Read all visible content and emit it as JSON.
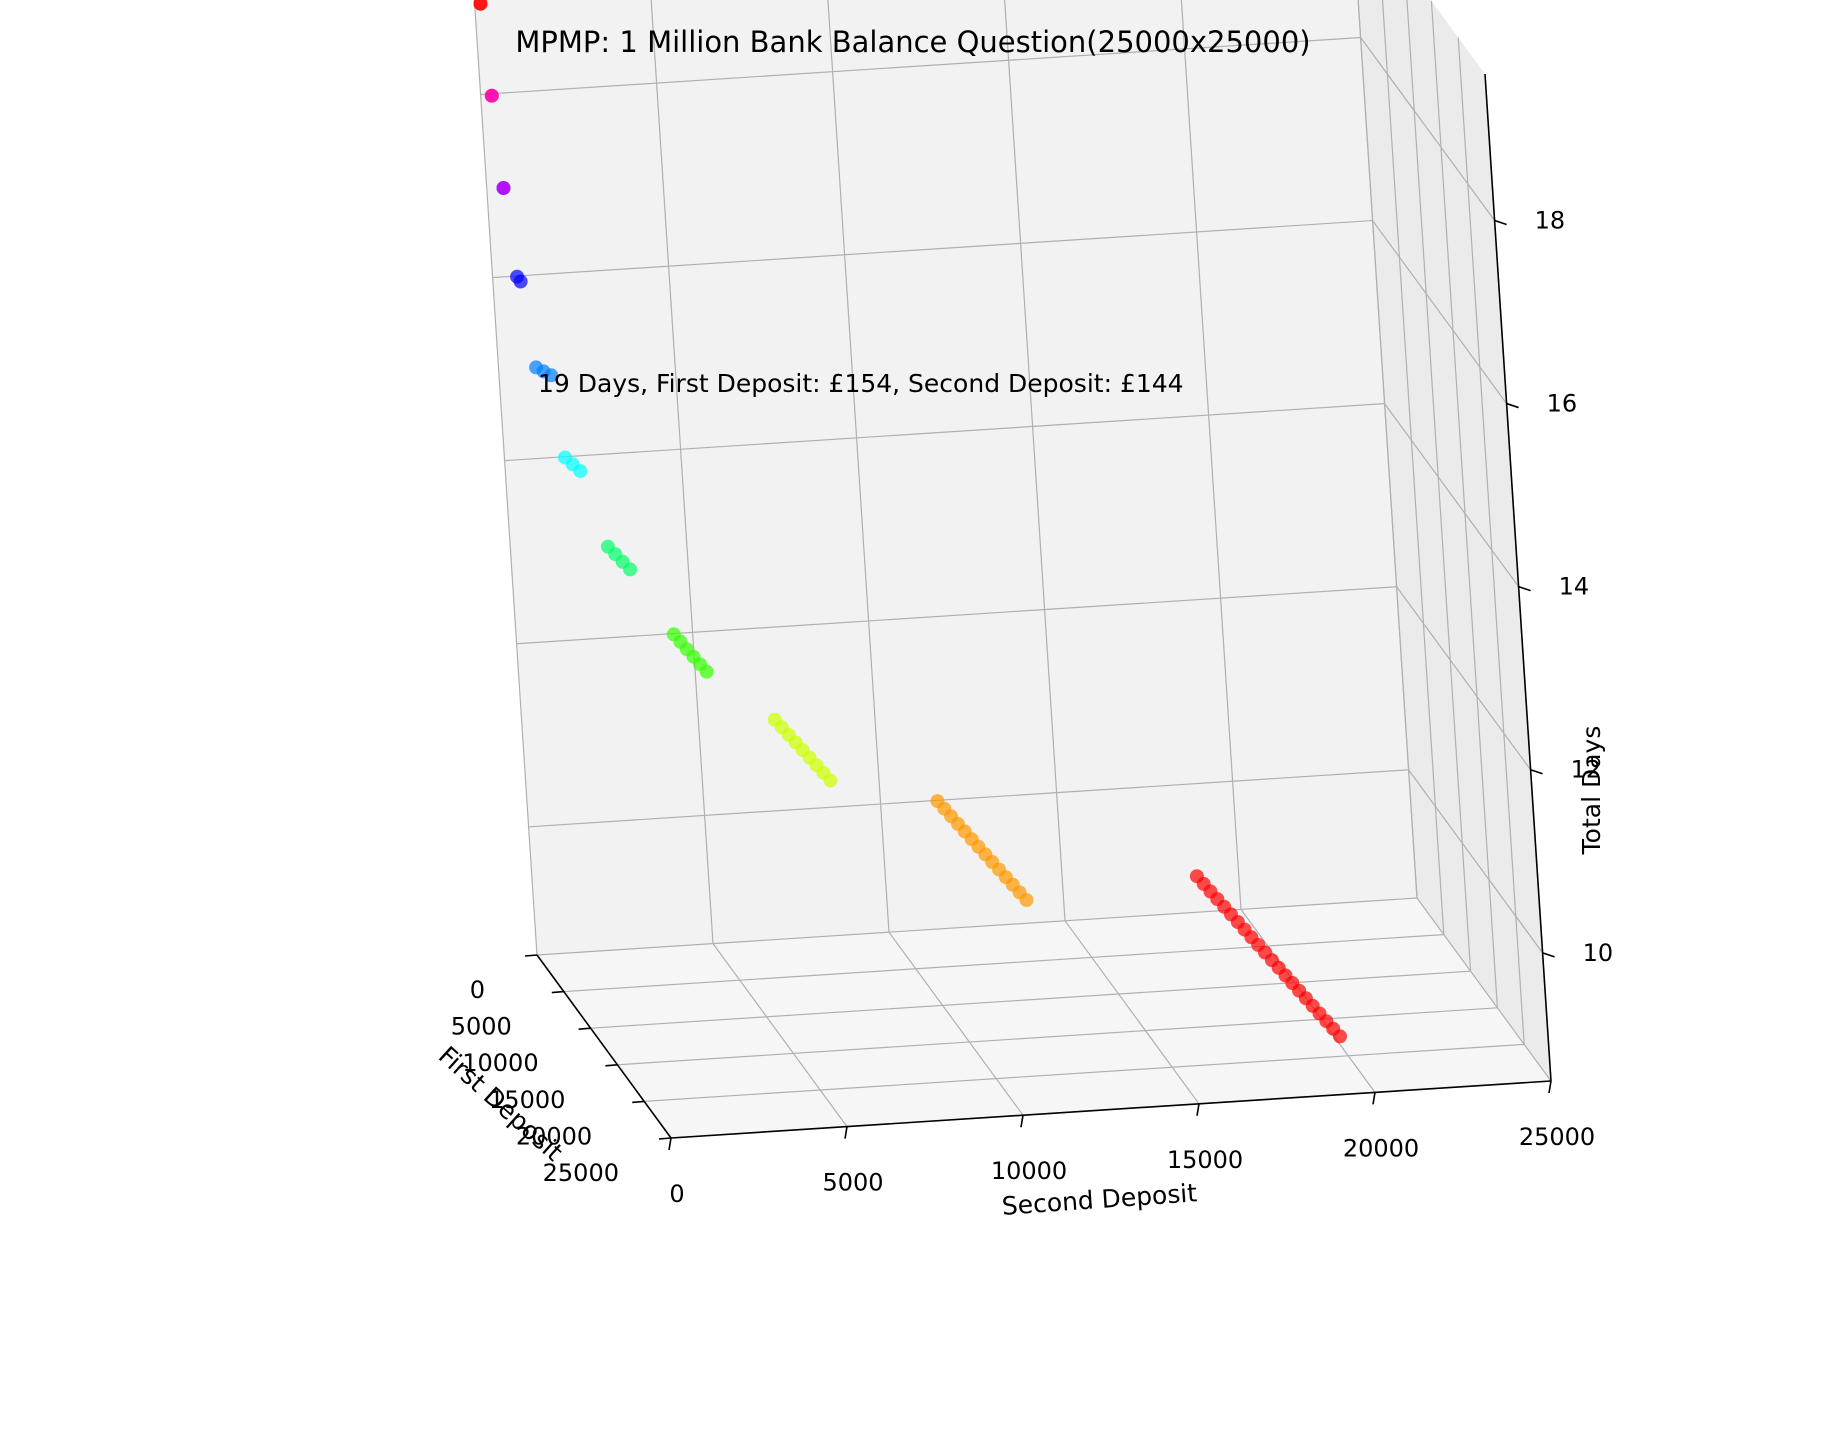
{
  "chart_data": {
    "type": "scatter",
    "title": "MPMP: 1 Million Bank Balance Question(25000x25000)",
    "xlabel": "First Deposit",
    "ylabel": "Second Deposit",
    "zlabel": "Total Days",
    "xlim": [
      0,
      25000
    ],
    "ylim": [
      0,
      25000
    ],
    "zlim": [
      8.6,
      19.6
    ],
    "x_ticks": [
      0,
      5000,
      10000,
      15000,
      20000,
      25000
    ],
    "y_ticks": [
      0,
      5000,
      10000,
      15000,
      20000,
      25000
    ],
    "z_ticks": [
      10,
      12,
      14,
      16,
      18
    ],
    "grid": true,
    "annotation": {
      "text": "19 Days, First Deposit: £154, Second Deposit: £144",
      "color": "#ff0000"
    },
    "series": [
      {
        "days": 19,
        "color": "#ff0000",
        "first_deposit": [
          154,
          154
        ],
        "second_deposit": [
          144,
          144
        ]
      },
      {
        "days": 18,
        "color": "#ff00aa",
        "first_deposit": [
          250,
          250
        ],
        "second_deposit": [
          280,
          280
        ]
      },
      {
        "days": 17,
        "color": "#aa00ff",
        "first_deposit": [
          400,
          400
        ],
        "second_deposit": [
          420,
          420
        ]
      },
      {
        "days": 16,
        "color": "#0000ff",
        "first_deposit": [
          100,
          750
        ],
        "second_deposit": [
          680,
          680
        ]
      },
      {
        "days": 15,
        "color": "#0080ff",
        "first_deposit": [
          100,
          1250
        ],
        "second_deposit": [
          1050,
          1300
        ]
      },
      {
        "days": 14,
        "color": "#00ffff",
        "first_deposit": [
          100,
          2000
        ],
        "second_deposit": [
          1700,
          1850
        ]
      },
      {
        "days": 13,
        "color": "#00ff66",
        "first_deposit": [
          100,
          3250
        ],
        "second_deposit": [
          2750,
          2900
        ]
      },
      {
        "days": 12,
        "color": "#33ff00",
        "first_deposit": [
          100,
          5250
        ],
        "second_deposit": [
          4450,
          4600
        ]
      },
      {
        "days": 11,
        "color": "#ccff00",
        "first_deposit": [
          100,
          8500
        ],
        "second_deposit": [
          7150,
          7450
        ]
      },
      {
        "days": 10,
        "color": "#ff9900",
        "first_deposit": [
          100,
          13750
        ],
        "second_deposit": [
          11600,
          12050
        ]
      },
      {
        "days": 9,
        "color": "#ff0000",
        "first_deposit": [
          100,
          22200
        ],
        "second_deposit": [
          18800,
          19500
        ]
      }
    ]
  }
}
